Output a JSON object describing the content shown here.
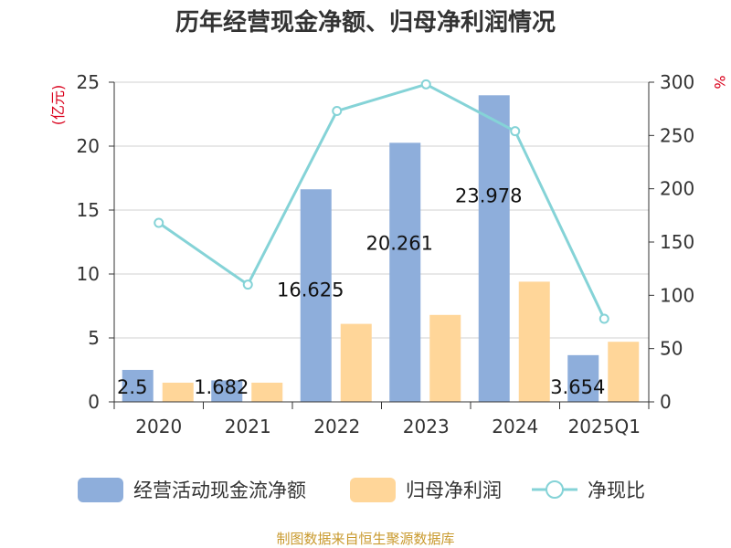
{
  "title": "历年经营现金净额、归母净利润情况",
  "source": "制图数据来自恒生聚源数据库",
  "chart_data": {
    "type": "bar",
    "categories": [
      "2020",
      "2021",
      "2022",
      "2023",
      "2024",
      "2025Q1"
    ],
    "series": [
      {
        "name": "经营活动现金流净额",
        "kind": "bar",
        "axis": "left",
        "color": "#8eaedb",
        "values": [
          2.5,
          1.682,
          16.625,
          20.261,
          23.978,
          3.654
        ],
        "labels": [
          "2.5",
          "1.682",
          "16.625",
          "20.261",
          "23.978",
          "3.654"
        ]
      },
      {
        "name": "归母净利润",
        "kind": "bar",
        "axis": "left",
        "color": "#ffd699",
        "values": [
          1.5,
          1.5,
          6.1,
          6.8,
          9.4,
          4.7
        ]
      },
      {
        "name": "净现比",
        "kind": "line",
        "axis": "right",
        "color": "#85d3d7",
        "values": [
          168,
          110,
          273,
          298,
          254,
          78
        ]
      }
    ],
    "y_left": {
      "label": "(亿元)",
      "min": 0,
      "max": 25,
      "ticks": [
        0,
        5,
        10,
        15,
        20,
        25
      ]
    },
    "y_right": {
      "label": "%",
      "min": 0,
      "max": 300,
      "ticks": [
        0,
        50,
        100,
        150,
        200,
        250,
        300
      ]
    },
    "grid": true,
    "legend_position": "bottom"
  }
}
